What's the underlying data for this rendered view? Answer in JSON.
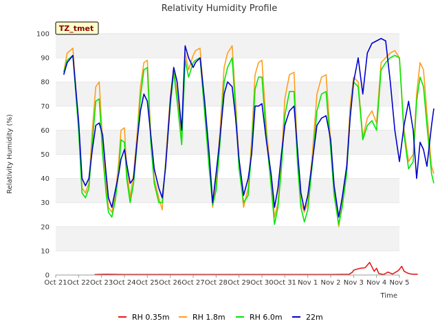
{
  "chart_data": {
    "type": "line",
    "title": "Relativity Humidity Profile",
    "xlabel": "Time",
    "ylabel": "Relativity Humidity (%)",
    "site_label": "TZ_tmet",
    "ylim": [
      0,
      100
    ],
    "yticks": [
      0,
      10,
      20,
      30,
      40,
      50,
      60,
      70,
      80,
      90,
      100
    ],
    "xlim": [
      "2023-10-21",
      "2023-11-05"
    ],
    "xtick_labels": [
      "Oct 21",
      "Oct 22",
      "Oct 23",
      "Oct 24",
      "Oct 25",
      "Oct 26",
      "Oct 27",
      "Oct 28",
      "Oct 29",
      "Oct 30",
      "Oct 31",
      "Nov 1",
      "Nov 2",
      "Nov 3",
      "Nov 4",
      "Nov 5"
    ],
    "grid": "horizontal bands",
    "legend_position": "bottom",
    "x_unit_note": "x values are days from Oct 21",
    "series": [
      {
        "name": "RH 0.35m",
        "color": "#e31a1c",
        "x": [
          1.7,
          2.2,
          3.0,
          4.0,
          5.0,
          6.0,
          7.0,
          8.0,
          9.0,
          10.0,
          11.0,
          12.0,
          12.8,
          12.95,
          13.0,
          13.1,
          13.3,
          13.5,
          13.7,
          13.9,
          14.0,
          14.1,
          14.3,
          14.5,
          14.7,
          14.95,
          15.1,
          15.2,
          15.35,
          15.5,
          15.65,
          15.8
        ],
        "y": [
          0.2,
          0.3,
          0.2,
          0.2,
          0.2,
          0.2,
          0.2,
          0.2,
          0.2,
          0.2,
          0.2,
          0.2,
          0.3,
          1.2,
          2.0,
          2.3,
          2.8,
          3.0,
          5.2,
          1.5,
          2.8,
          0.6,
          0.2,
          1.2,
          0.4,
          1.8,
          3.6,
          1.6,
          0.8,
          0.4,
          0.3,
          0.3
        ]
      },
      {
        "name": "RH 1.8m",
        "color": "#ff9e1b",
        "x": [
          0.35,
          0.5,
          0.75,
          1.0,
          1.15,
          1.3,
          1.45,
          1.6,
          1.75,
          1.9,
          2.05,
          2.2,
          2.3,
          2.45,
          2.6,
          2.75,
          2.85,
          3.0,
          3.1,
          3.25,
          3.4,
          3.55,
          3.7,
          3.85,
          4.0,
          4.15,
          4.3,
          4.5,
          4.65,
          4.8,
          5.0,
          5.15,
          5.3,
          5.5,
          5.65,
          5.8,
          6.0,
          6.1,
          6.3,
          6.5,
          6.7,
          6.85,
          7.0,
          7.15,
          7.35,
          7.5,
          7.7,
          7.85,
          8.0,
          8.2,
          8.4,
          8.55,
          8.7,
          8.85,
          9.0,
          9.2,
          9.4,
          9.55,
          9.7,
          9.85,
          10.0,
          10.2,
          10.4,
          10.55,
          10.7,
          10.85,
          11.0,
          11.2,
          11.4,
          11.6,
          11.8,
          12.0,
          12.15,
          12.35,
          12.5,
          12.7,
          12.85,
          13.0,
          13.2,
          13.4,
          13.6,
          13.8,
          14.0,
          14.2,
          14.4,
          14.6,
          14.8,
          15.0,
          15.2,
          15.4,
          15.6,
          15.75,
          15.9,
          16.05,
          16.2,
          16.4,
          16.5
        ],
        "y": [
          84,
          92,
          94,
          62,
          36,
          34,
          38,
          60,
          78,
          80,
          55,
          38,
          28,
          26,
          33,
          47,
          60,
          61,
          44,
          32,
          42,
          58,
          78,
          88,
          89,
          58,
          40,
          32,
          27,
          48,
          74,
          86,
          75,
          57,
          92,
          85,
          91,
          93,
          94,
          70,
          47,
          28,
          38,
          57,
          86,
          92,
          95,
          72,
          47,
          28,
          36,
          56,
          83,
          88,
          89,
          60,
          40,
          24,
          30,
          47,
          73,
          83,
          84,
          50,
          30,
          26,
          30,
          50,
          75,
          82,
          83,
          55,
          35,
          20,
          30,
          45,
          70,
          82,
          80,
          57,
          65,
          68,
          63,
          88,
          90,
          92,
          93,
          90,
          60,
          47,
          50,
          75,
          88,
          85,
          67,
          45,
          42
        ]
      },
      {
        "name": "RH 6.0m",
        "color": "#00e600",
        "x": [
          0.35,
          0.5,
          0.75,
          1.0,
          1.15,
          1.3,
          1.45,
          1.6,
          1.75,
          1.9,
          2.05,
          2.2,
          2.3,
          2.45,
          2.6,
          2.75,
          2.85,
          3.0,
          3.1,
          3.25,
          3.4,
          3.55,
          3.7,
          3.85,
          4.0,
          4.15,
          4.3,
          4.5,
          4.65,
          4.8,
          5.0,
          5.15,
          5.3,
          5.5,
          5.65,
          5.8,
          6.0,
          6.1,
          6.3,
          6.5,
          6.7,
          6.85,
          7.0,
          7.15,
          7.35,
          7.5,
          7.7,
          7.85,
          8.0,
          8.2,
          8.4,
          8.55,
          8.7,
          8.85,
          9.0,
          9.2,
          9.4,
          9.55,
          9.7,
          9.85,
          10.0,
          10.2,
          10.4,
          10.55,
          10.7,
          10.85,
          11.0,
          11.2,
          11.4,
          11.6,
          11.8,
          12.0,
          12.15,
          12.35,
          12.5,
          12.7,
          12.85,
          13.0,
          13.2,
          13.4,
          13.6,
          13.8,
          14.0,
          14.2,
          14.4,
          14.6,
          14.8,
          15.0,
          15.2,
          15.4,
          15.6,
          15.75,
          15.9,
          16.05,
          16.2,
          16.4,
          16.5
        ],
        "y": [
          84,
          89,
          91,
          60,
          34,
          32,
          36,
          55,
          72,
          73,
          50,
          34,
          26,
          24,
          31,
          43,
          56,
          55,
          40,
          30,
          38,
          54,
          74,
          85,
          86,
          55,
          38,
          30,
          30,
          46,
          70,
          84,
          72,
          54,
          89,
          82,
          88,
          89,
          90,
          67,
          44,
          29,
          35,
          52,
          80,
          86,
          90,
          68,
          44,
          30,
          33,
          52,
          77,
          82,
          82,
          56,
          37,
          21,
          28,
          44,
          66,
          76,
          76,
          46,
          28,
          22,
          27,
          46,
          68,
          75,
          76,
          52,
          33,
          21,
          28,
          42,
          66,
          80,
          78,
          56,
          62,
          64,
          60,
          85,
          88,
          90,
          91,
          90,
          58,
          44,
          47,
          72,
          82,
          78,
          62,
          42,
          38
        ]
      },
      {
        "name": "22m",
        "color": "#0000cc",
        "x": [
          0.35,
          0.5,
          0.75,
          1.0,
          1.15,
          1.3,
          1.45,
          1.6,
          1.75,
          1.9,
          2.05,
          2.2,
          2.3,
          2.45,
          2.6,
          2.75,
          2.85,
          3.0,
          3.1,
          3.25,
          3.4,
          3.55,
          3.7,
          3.85,
          4.0,
          4.15,
          4.3,
          4.5,
          4.65,
          4.8,
          5.0,
          5.15,
          5.3,
          5.5,
          5.65,
          5.8,
          6.0,
          6.1,
          6.3,
          6.5,
          6.7,
          6.85,
          7.0,
          7.15,
          7.35,
          7.5,
          7.7,
          7.85,
          8.0,
          8.2,
          8.4,
          8.55,
          8.7,
          8.85,
          9.0,
          9.2,
          9.4,
          9.55,
          9.7,
          9.85,
          10.0,
          10.2,
          10.4,
          10.55,
          10.7,
          10.85,
          11.0,
          11.2,
          11.4,
          11.6,
          11.8,
          12.0,
          12.15,
          12.35,
          12.5,
          12.7,
          12.85,
          13.0,
          13.2,
          13.4,
          13.6,
          13.8,
          14.0,
          14.2,
          14.4,
          14.6,
          14.8,
          15.0,
          15.2,
          15.4,
          15.6,
          15.75,
          15.9,
          16.05,
          16.2,
          16.4,
          16.5
        ],
        "y": [
          83,
          88,
          91,
          64,
          40,
          37,
          40,
          52,
          62,
          63,
          58,
          42,
          32,
          28,
          35,
          42,
          48,
          52,
          46,
          38,
          40,
          55,
          68,
          75,
          72,
          58,
          44,
          36,
          32,
          45,
          72,
          86,
          80,
          60,
          95,
          90,
          86,
          88,
          90,
          72,
          50,
          30,
          42,
          55,
          75,
          80,
          78,
          65,
          48,
          33,
          40,
          50,
          70,
          70,
          71,
          55,
          42,
          28,
          36,
          50,
          62,
          68,
          70,
          52,
          34,
          27,
          33,
          47,
          62,
          65,
          66,
          56,
          37,
          24,
          32,
          45,
          65,
          80,
          90,
          75,
          92,
          96,
          97,
          98,
          97,
          80,
          60,
          47,
          62,
          72,
          60,
          40,
          55,
          52,
          45,
          62,
          69
        ]
      }
    ]
  }
}
